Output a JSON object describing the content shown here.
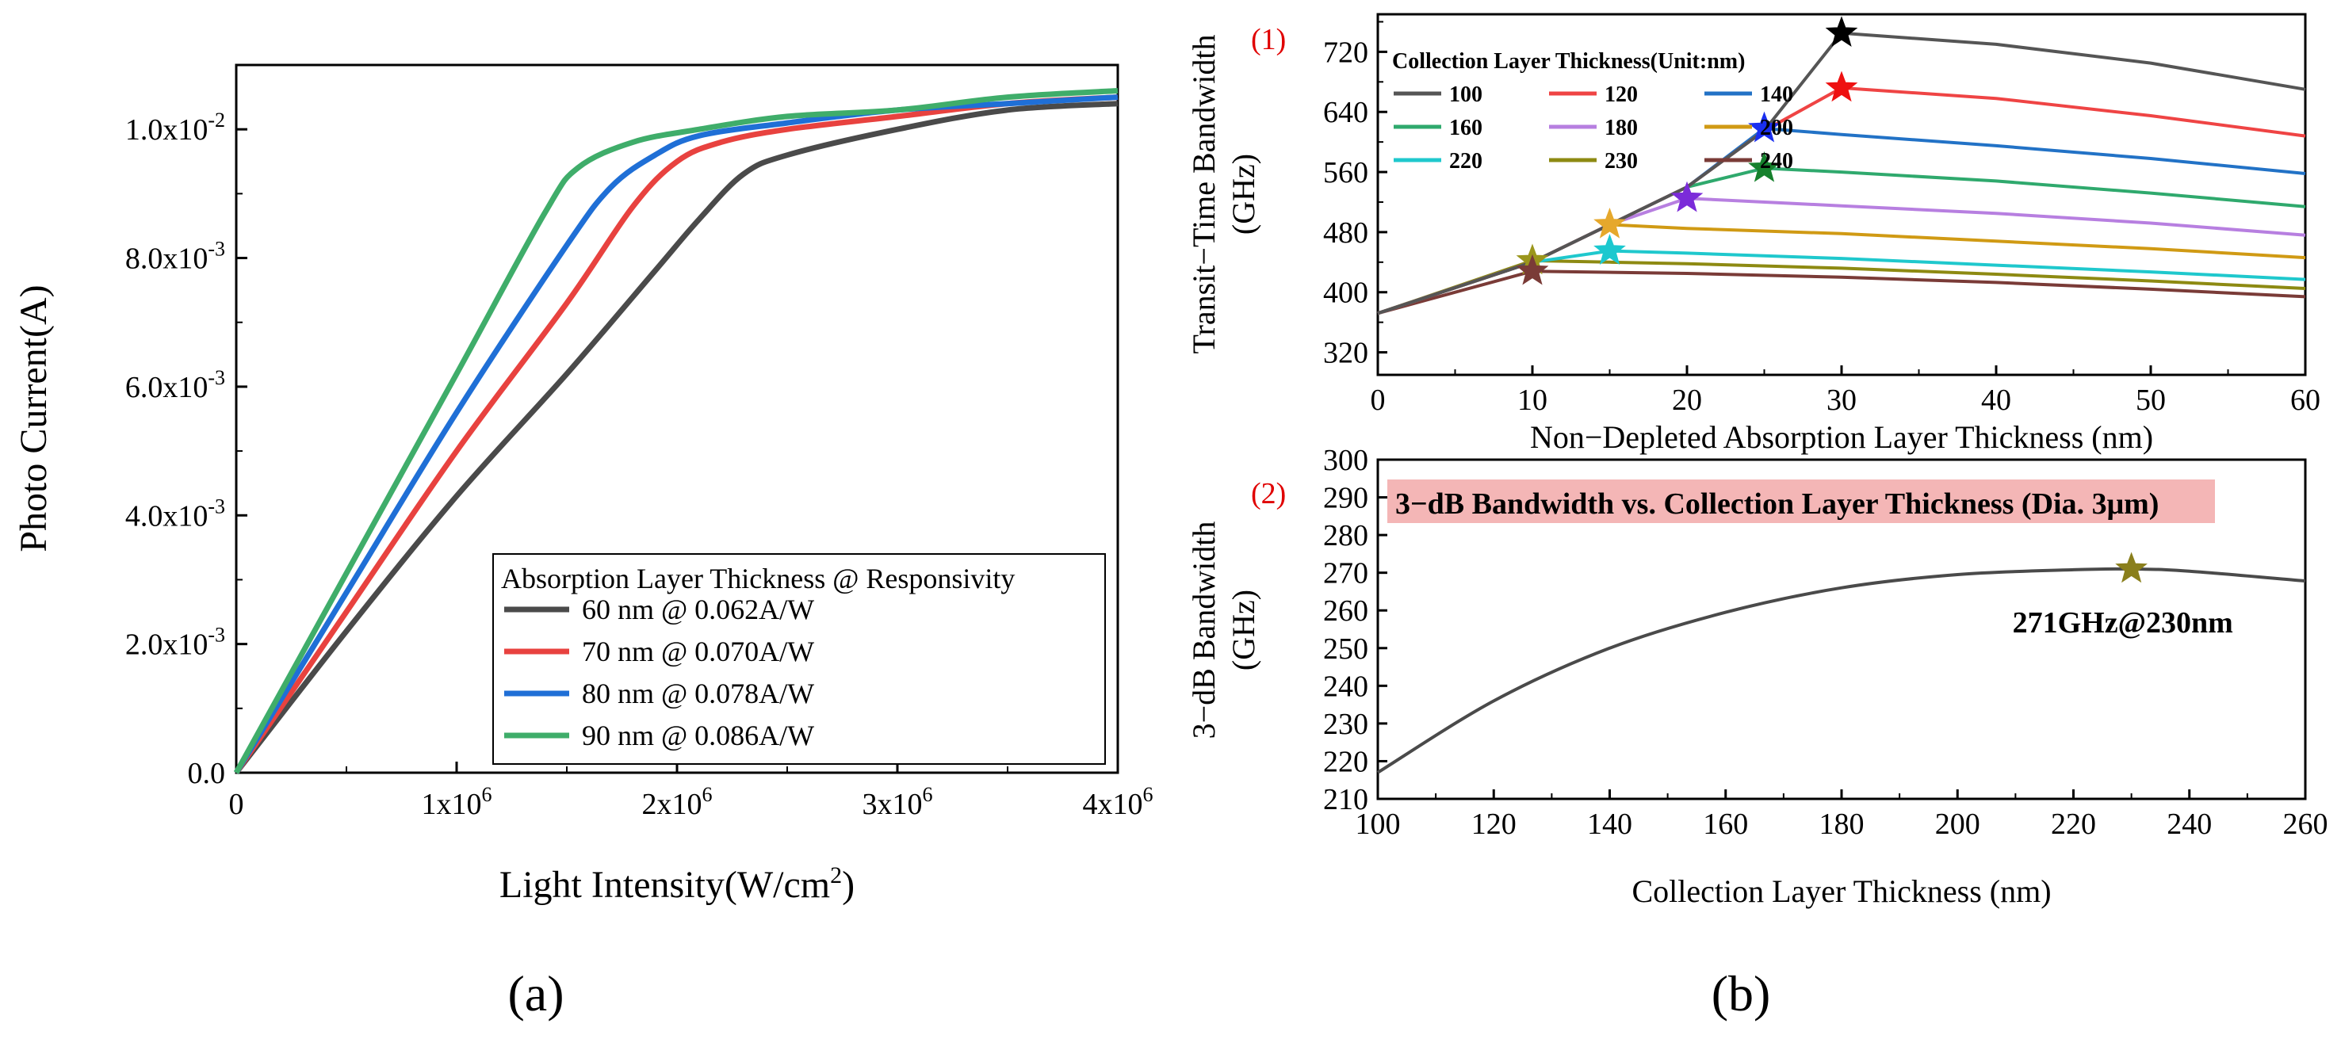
{
  "chart_data": [
    {
      "type": "line",
      "caption": "(a)",
      "xlabel_main": "Light Intensity(W/cm",
      "xlabel_sup": "2",
      "xlabel_tail": ")",
      "ylabel": "Photo Current(A)",
      "xlim": [
        0,
        4000000
      ],
      "ylim": [
        0,
        0.011
      ],
      "x_ticks": [
        {
          "value": 0,
          "base": "0",
          "exp": ""
        },
        {
          "value": 1000000,
          "base": "1x10",
          "exp": "6"
        },
        {
          "value": 2000000,
          "base": "2x10",
          "exp": "6"
        },
        {
          "value": 3000000,
          "base": "3x10",
          "exp": "6"
        },
        {
          "value": 4000000,
          "base": "4x10",
          "exp": "6"
        }
      ],
      "y_ticks": [
        {
          "value": 0,
          "base": "0.0",
          "exp": ""
        },
        {
          "value": 0.002,
          "base": "2.0x10",
          "exp": "-3"
        },
        {
          "value": 0.004,
          "base": "4.0x10",
          "exp": "-3"
        },
        {
          "value": 0.006,
          "base": "6.0x10",
          "exp": "-3"
        },
        {
          "value": 0.008,
          "base": "8.0x10",
          "exp": "-3"
        },
        {
          "value": 0.01,
          "base": "1.0x10",
          "exp": "-2"
        }
      ],
      "legend_title": "Absorption Layer Thickness @ Responsivity",
      "series": [
        {
          "name": "60 nm @ 0.062A/W",
          "color": "#4a4a4a",
          "x": [
            0,
            500000,
            1000000,
            1500000,
            1900000,
            2100000,
            2300000,
            2500000,
            3000000,
            3500000,
            4000000
          ],
          "y": [
            0,
            0.0022,
            0.0043,
            0.0062,
            0.0078,
            0.0086,
            0.0093,
            0.0096,
            0.01,
            0.0103,
            0.0104
          ]
        },
        {
          "name": "70 nm @ 0.070A/W",
          "color": "#e8423f",
          "x": [
            0,
            500000,
            1000000,
            1500000,
            1800000,
            2000000,
            2200000,
            2500000,
            3000000,
            3500000,
            4000000
          ],
          "y": [
            0,
            0.0025,
            0.005,
            0.0073,
            0.0088,
            0.0095,
            0.0098,
            0.01,
            0.0102,
            0.0104,
            0.0105
          ]
        },
        {
          "name": "80 nm @ 0.078A/W",
          "color": "#1f6fd6",
          "x": [
            0,
            500000,
            1000000,
            1500000,
            1700000,
            1900000,
            2100000,
            2500000,
            3000000,
            3500000,
            4000000
          ],
          "y": [
            0,
            0.0028,
            0.0056,
            0.0082,
            0.0091,
            0.0096,
            0.0099,
            0.0101,
            0.0103,
            0.0104,
            0.0105
          ]
        },
        {
          "name": "90 nm @ 0.086A/W",
          "color": "#3fad6a",
          "x": [
            0,
            500000,
            1000000,
            1400000,
            1550000,
            1800000,
            2100000,
            2500000,
            3000000,
            3500000,
            4000000
          ],
          "y": [
            0,
            0.0031,
            0.0062,
            0.0087,
            0.0094,
            0.0098,
            0.01,
            0.0102,
            0.0103,
            0.0105,
            0.0106
          ]
        }
      ]
    },
    {
      "type": "line",
      "panel_number": "(1)",
      "xlabel": "Non−Depleted Absorption Layer Thickness (nm)",
      "ylabel_line1": "Transit−Time Bandwidth",
      "ylabel_line2": "(GHz)",
      "xlim": [
        0,
        60
      ],
      "ylim": [
        290,
        770
      ],
      "x_ticks": [
        0,
        10,
        20,
        30,
        40,
        50,
        60
      ],
      "y_ticks": [
        320,
        400,
        480,
        560,
        640,
        720
      ],
      "legend_title": "Collection Layer Thickness(Unit:nm)",
      "series": [
        {
          "name": "100",
          "color": "#555555",
          "x": [
            0,
            10,
            15,
            20,
            25,
            30,
            40,
            50,
            60
          ],
          "y": [
            372,
            440,
            490,
            540,
            615,
            745,
            730,
            705,
            670
          ],
          "peak": [
            30,
            745
          ],
          "star_color": "#000000"
        },
        {
          "name": "120",
          "color": "#ef4444",
          "x": [
            0,
            10,
            15,
            20,
            25,
            30,
            40,
            50,
            60
          ],
          "y": [
            372,
            440,
            490,
            540,
            615,
            672,
            658,
            635,
            608
          ],
          "peak": [
            30,
            672
          ],
          "star_color": "#ee1111"
        },
        {
          "name": "140",
          "color": "#2272c6",
          "x": [
            0,
            10,
            15,
            20,
            25,
            30,
            40,
            50,
            60
          ],
          "y": [
            372,
            440,
            490,
            540,
            618,
            610,
            595,
            578,
            558
          ],
          "peak": [
            25,
            618
          ],
          "star_color": "#1a2ff0"
        },
        {
          "name": "160",
          "color": "#2fa96d",
          "x": [
            0,
            10,
            15,
            20,
            25,
            30,
            40,
            50,
            60
          ],
          "y": [
            372,
            440,
            490,
            540,
            565,
            560,
            548,
            532,
            514
          ],
          "peak": [
            25,
            565
          ],
          "star_color": "#16812d"
        },
        {
          "name": "180",
          "color": "#b77fe0",
          "x": [
            0,
            10,
            15,
            20,
            30,
            40,
            50,
            60
          ],
          "y": [
            372,
            440,
            490,
            525,
            515,
            505,
            492,
            476
          ],
          "peak": [
            20,
            525
          ],
          "star_color": "#7b2bd9"
        },
        {
          "name": "200",
          "color": "#d09a14",
          "x": [
            0,
            10,
            15,
            20,
            30,
            40,
            50,
            60
          ],
          "y": [
            372,
            440,
            490,
            485,
            478,
            468,
            458,
            446
          ],
          "peak": [
            15,
            490
          ],
          "star_color": "#e6a82c"
        },
        {
          "name": "220",
          "color": "#1fc8cd",
          "x": [
            0,
            10,
            15,
            20,
            30,
            40,
            50,
            60
          ],
          "y": [
            372,
            440,
            455,
            452,
            445,
            436,
            427,
            417
          ],
          "peak": [
            15,
            455
          ],
          "star_color": "#1bc8cf"
        },
        {
          "name": "230",
          "color": "#8d8a12",
          "x": [
            0,
            10,
            15,
            20,
            30,
            40,
            50,
            60
          ],
          "y": [
            372,
            442,
            440,
            438,
            432,
            424,
            415,
            405
          ],
          "peak": [
            10,
            442
          ],
          "star_color": "#9b961c"
        },
        {
          "name": "240",
          "color": "#7a3b37",
          "x": [
            0,
            10,
            20,
            30,
            40,
            50,
            60
          ],
          "y": [
            372,
            428,
            425,
            420,
            413,
            404,
            394
          ],
          "peak": [
            10,
            428
          ],
          "star_color": "#7a3b37"
        }
      ]
    },
    {
      "type": "line",
      "panel_number": "(2)",
      "title": "3−dB Bandwidth vs. Collection Layer Thickness (Dia. 3μm)",
      "xlabel": "Collection Layer Thickness (nm)",
      "ylabel_line1": "3−dB Bandwidth",
      "ylabel_line2": "(GHz)",
      "xlim": [
        100,
        260
      ],
      "ylim": [
        210,
        300
      ],
      "x_ticks": [
        100,
        120,
        140,
        160,
        180,
        200,
        220,
        240,
        260
      ],
      "y_ticks": [
        210,
        220,
        230,
        240,
        250,
        260,
        270,
        280,
        290,
        300
      ],
      "series": [
        {
          "name": "3-dB bandwidth",
          "color": "#4a4a4a",
          "x": [
            100,
            120,
            140,
            160,
            180,
            200,
            220,
            230,
            240,
            260
          ],
          "y": [
            217,
            236,
            250,
            259.5,
            266,
            269.5,
            270.8,
            271,
            270.4,
            267.8
          ]
        }
      ],
      "peak": {
        "x": 230,
        "y": 271,
        "color": "#8a7f1c",
        "label": "271GHz@230nm"
      },
      "caption": "(b)"
    }
  ]
}
